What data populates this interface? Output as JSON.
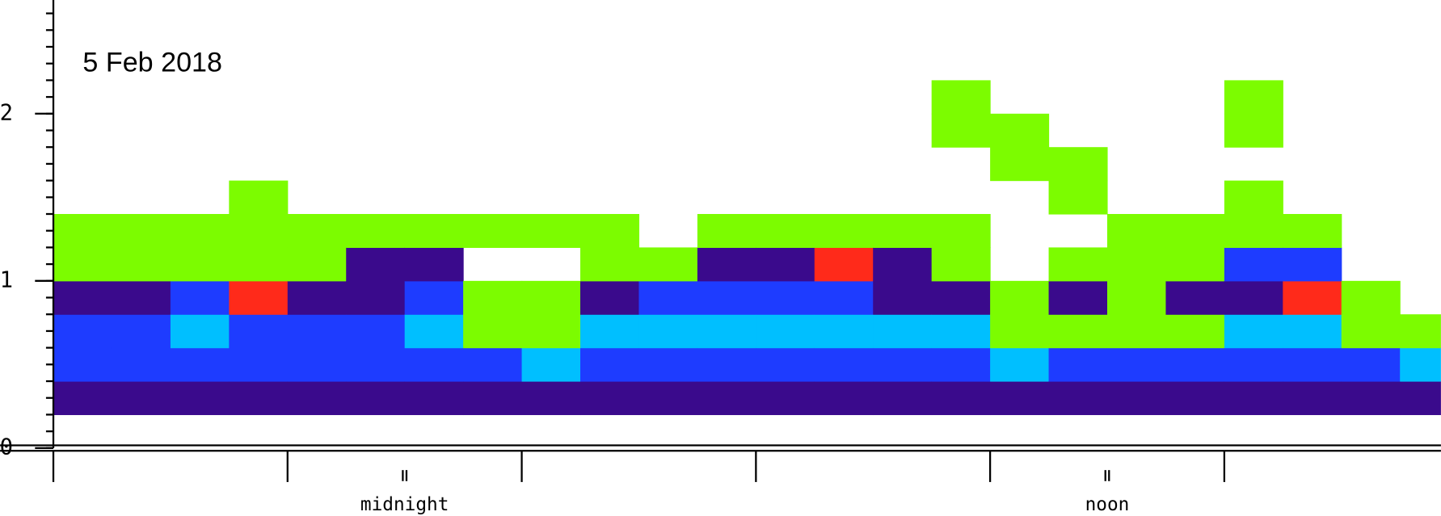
{
  "chart_data": {
    "type": "heatmap",
    "title": "5 Feb 2018",
    "xlim": [
      -6,
      17.7
    ],
    "xticks": [
      -6,
      -2,
      2,
      6,
      10,
      14
    ],
    "ylim": [
      0,
      2.68
    ],
    "yticks": [
      0,
      1,
      2
    ],
    "y_minor_step": 0.1,
    "annotations": [
      {
        "x": 0,
        "text": "midnight"
      },
      {
        "x": 12,
        "text": "noon"
      }
    ],
    "x": [
      -6,
      -5,
      -4,
      -3,
      -2,
      -1,
      0,
      1,
      2,
      3,
      4,
      5,
      6,
      7,
      8,
      9,
      10,
      11,
      12,
      13,
      14,
      15,
      16,
      17
    ],
    "y": [
      0.2,
      0.4,
      0.6,
      0.8,
      1.0,
      1.2,
      1.4,
      1.6,
      1.8,
      2.0,
      2.2,
      2.4
    ],
    "colorscale": [
      "#ffffff",
      "#7cfc00",
      "#00bfff",
      "#1e3cff",
      "#3a0a8c",
      "#ff2a1a"
    ],
    "z": [
      [
        4,
        3,
        3,
        4,
        1,
        1,
        0,
        0,
        0,
        0,
        0,
        0
      ],
      [
        4,
        3,
        3,
        4,
        1,
        1,
        0,
        0,
        0,
        0,
        0,
        0
      ],
      [
        4,
        3,
        2,
        3,
        1,
        1,
        0,
        0,
        0,
        0,
        0,
        0
      ],
      [
        4,
        3,
        3,
        5,
        1,
        1,
        1,
        0,
        0,
        0,
        0,
        0
      ],
      [
        4,
        3,
        3,
        4,
        1,
        1,
        0,
        0,
        0,
        0,
        0,
        0
      ],
      [
        4,
        3,
        3,
        4,
        4,
        1,
        0,
        0,
        0,
        0,
        0,
        0
      ],
      [
        4,
        3,
        2,
        3,
        4,
        1,
        0,
        0,
        0,
        0,
        0,
        0
      ],
      [
        4,
        3,
        1,
        1,
        0,
        1,
        0,
        0,
        0,
        0,
        0,
        0
      ],
      [
        4,
        2,
        1,
        1,
        0,
        1,
        0,
        0,
        0,
        0,
        0,
        0
      ],
      [
        4,
        3,
        2,
        4,
        1,
        1,
        0,
        0,
        0,
        0,
        0,
        0
      ],
      [
        4,
        3,
        2,
        3,
        1,
        0,
        0,
        0,
        0,
        0,
        0,
        0
      ],
      [
        4,
        3,
        2,
        3,
        4,
        1,
        0,
        0,
        0,
        0,
        0,
        0
      ],
      [
        4,
        3,
        2,
        3,
        4,
        1,
        0,
        0,
        0,
        0,
        0,
        0
      ],
      [
        4,
        3,
        2,
        3,
        5,
        1,
        0,
        0,
        0,
        0,
        0,
        0
      ],
      [
        4,
        3,
        2,
        4,
        4,
        1,
        0,
        0,
        0,
        0,
        0,
        0
      ],
      [
        4,
        3,
        2,
        4,
        1,
        1,
        0,
        0,
        1,
        1,
        0,
        0
      ],
      [
        4,
        2,
        1,
        1,
        0,
        0,
        0,
        1,
        1,
        0,
        0,
        0
      ],
      [
        4,
        3,
        1,
        4,
        1,
        0,
        1,
        1,
        0,
        0,
        0,
        0
      ],
      [
        4,
        3,
        1,
        1,
        1,
        1,
        0,
        0,
        0,
        0,
        0,
        0
      ],
      [
        4,
        3,
        1,
        4,
        1,
        1,
        0,
        0,
        0,
        0,
        0,
        0
      ],
      [
        4,
        3,
        2,
        4,
        3,
        1,
        1,
        0,
        1,
        1,
        0,
        0
      ],
      [
        4,
        3,
        2,
        5,
        3,
        1,
        0,
        0,
        0,
        0,
        0,
        0
      ],
      [
        4,
        3,
        1,
        1,
        0,
        0,
        0,
        0,
        0,
        0,
        0,
        0
      ],
      [
        4,
        2,
        1,
        0,
        0,
        0,
        0,
        0,
        0,
        0,
        0,
        0
      ]
    ]
  }
}
